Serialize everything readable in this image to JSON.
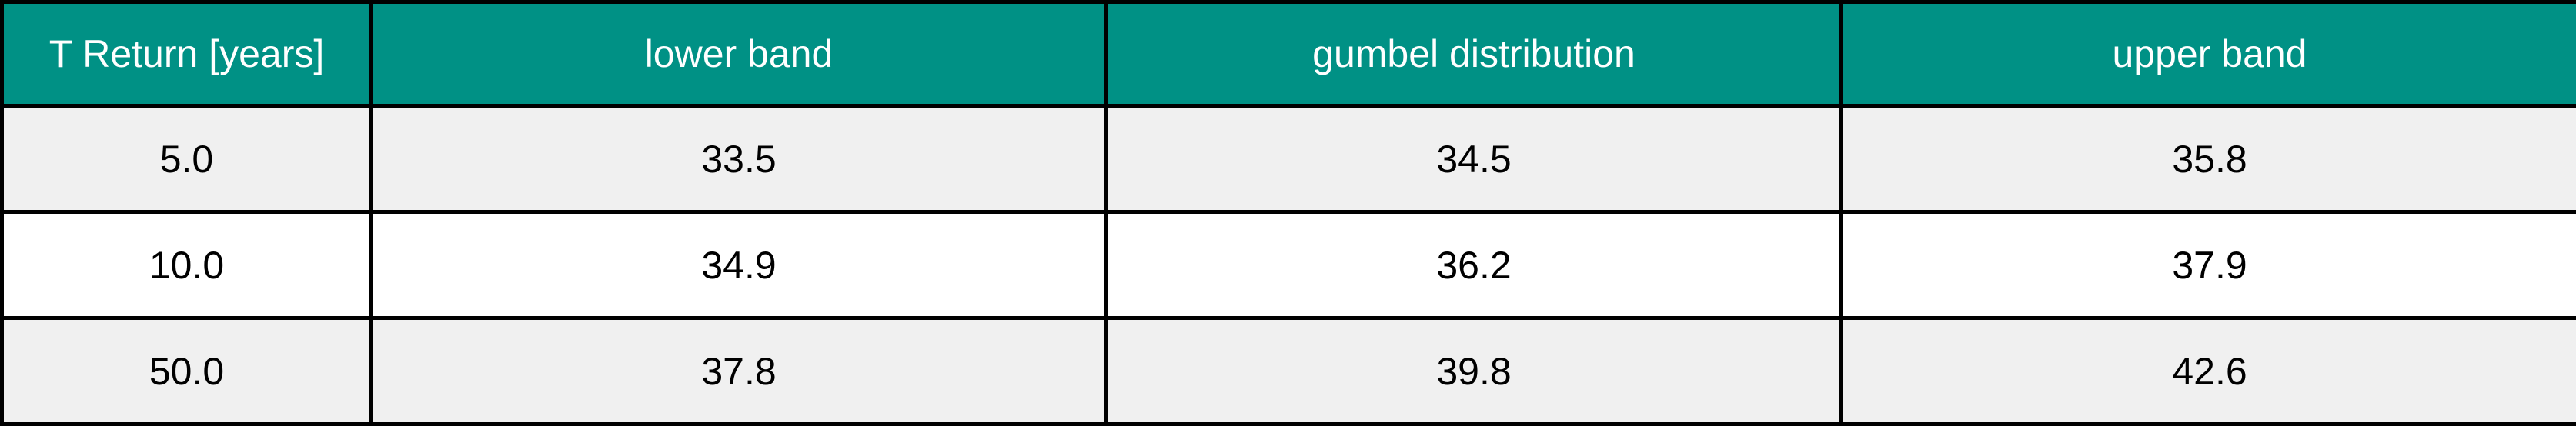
{
  "chart_data": {
    "type": "table",
    "columns": [
      "T Return [years]",
      "lower band",
      "gumbel distribution",
      "upper band"
    ],
    "rows": [
      [
        "5.0",
        "33.5",
        "34.5",
        "35.8"
      ],
      [
        "10.0",
        "34.9",
        "36.2",
        "37.9"
      ],
      [
        "50.0",
        "37.8",
        "39.8",
        "42.6"
      ]
    ]
  },
  "colors": {
    "header_background": "#009185",
    "header_text": "#ffffff",
    "row_odd_background": "#f0f0f0",
    "row_even_background": "#ffffff",
    "border": "#000000"
  }
}
